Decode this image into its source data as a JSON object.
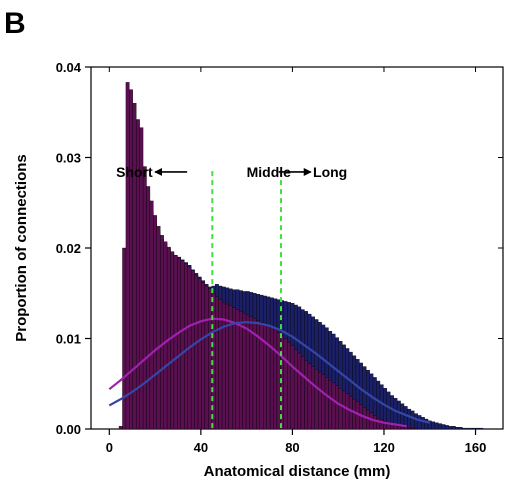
{
  "panel_label": "B",
  "chart_data": {
    "type": "bar",
    "xlabel": "Anatomical distance (mm)",
    "ylabel": "Proportion of connections",
    "xlim": [
      -8,
      172
    ],
    "ylim": [
      0,
      0.04
    ],
    "x_ticks": [
      0,
      40,
      80,
      120,
      160
    ],
    "x_tick_labels": [
      "0",
      "40",
      "80",
      "120",
      "160"
    ],
    "y_ticks": [
      0,
      0.01,
      0.02,
      0.03,
      0.04
    ],
    "y_tick_labels": [
      "0.00",
      "0.01",
      "0.02",
      "0.03",
      "0.04"
    ],
    "colors": {
      "navy_bars": "#1a1f66",
      "purple_bars": "#5a1050",
      "bar_edge": "#000000",
      "purple_curve": "#a020b0",
      "blue_curve": "#3347a8",
      "boundary_lines": "#44dd44"
    },
    "boundaries": [
      45,
      75
    ],
    "annotations": [
      {
        "text": "Short",
        "x": 3,
        "y": 0.0284
      },
      {
        "text": "Middle",
        "x": 60,
        "y": 0.0284
      },
      {
        "text": "Long",
        "x": 89,
        "y": 0.0284
      }
    ],
    "arrows": [
      {
        "from": [
          34,
          0.0284
        ],
        "to": [
          20,
          0.0284
        ]
      },
      {
        "from": [
          74,
          0.0284
        ],
        "to": [
          88,
          0.0284
        ]
      }
    ],
    "series": [
      {
        "bin_width": 1.5,
        "x": [
          9.5,
          11.0,
          12.5,
          14.0,
          15.5,
          17.0,
          18.5,
          20.0,
          21.5,
          23.0,
          24.5,
          26.0,
          27.5,
          29.0,
          30.5,
          32.0,
          33.5,
          35.0,
          36.5,
          38.0,
          39.5,
          41.0,
          42.5,
          44.0,
          45.5,
          47.0,
          48.5,
          50.0,
          51.5,
          53.0,
          54.5,
          56.0,
          57.5,
          59.0,
          60.5,
          62.0,
          63.5,
          65.0,
          66.5,
          68.0,
          69.5,
          71.0,
          72.5,
          74.0,
          75.5,
          77.0,
          78.5,
          80.0,
          81.5,
          83.0,
          84.5,
          86.0,
          87.5,
          89.0,
          90.5,
          92.0,
          93.5,
          95.0,
          96.5,
          98.0,
          99.5,
          101.0,
          102.5,
          104.0,
          105.5,
          107.0,
          108.5,
          110.0,
          111.5,
          113.0,
          114.5,
          116.0,
          117.5,
          119.0,
          120.5,
          122.0,
          123.5,
          125.0,
          126.5,
          128.0,
          129.5,
          131.0,
          132.5,
          134.0,
          135.5,
          137.0,
          138.5,
          140.0,
          141.5,
          143.0,
          144.5,
          146.0,
          147.5,
          149.0,
          150.5,
          152.0,
          153.5,
          155.0,
          156.5,
          158.0,
          159.5,
          161.0,
          162.5,
          164.0,
          165.5,
          167.0,
          168.5
        ],
        "values": [
          0.0355,
          0.0335,
          0.033,
          0.0284,
          0.0265,
          0.0253,
          0.024,
          0.0228,
          0.0218,
          0.021,
          0.0205,
          0.02,
          0.0195,
          0.0192,
          0.019,
          0.0187,
          0.0184,
          0.0181,
          0.0176,
          0.0172,
          0.0168,
          0.0164,
          0.016,
          0.0157,
          0.0158,
          0.016,
          0.0158,
          0.0157,
          0.0156,
          0.0155,
          0.0154,
          0.0154,
          0.0153,
          0.0152,
          0.0152,
          0.0151,
          0.015,
          0.0149,
          0.0148,
          0.0147,
          0.0146,
          0.0145,
          0.0144,
          0.0143,
          0.0142,
          0.0141,
          0.014,
          0.0139,
          0.0137,
          0.0135,
          0.0132,
          0.013,
          0.0127,
          0.0124,
          0.0121,
          0.0118,
          0.0115,
          0.0112,
          0.0108,
          0.0105,
          0.0101,
          0.0097,
          0.0093,
          0.0089,
          0.0085,
          0.0081,
          0.0077,
          0.0073,
          0.0069,
          0.0065,
          0.0061,
          0.0057,
          0.0053,
          0.0049,
          0.0045,
          0.0041,
          0.0037,
          0.0034,
          0.0031,
          0.0028,
          0.0025,
          0.0022,
          0.002,
          0.0017,
          0.0015,
          0.0013,
          0.0011,
          0.0009,
          0.0008,
          0.0007,
          0.0006,
          0.0005,
          0.0004,
          0.0003,
          0.0003,
          0.0002,
          0.0002,
          0.0001,
          0.0001,
          0.0001,
          0.0001,
          0.0001,
          0.0001,
          0.0,
          0.0,
          0.0,
          0.0
        ]
      },
      {
        "bin_width": 1.5,
        "x": [
          5.0,
          6.5,
          8.0,
          9.5,
          11.0,
          12.5,
          14.0,
          15.5,
          17.0,
          18.5,
          20.0,
          21.5,
          23.0,
          24.5,
          26.0,
          27.5,
          29.0,
          30.5,
          32.0,
          33.5,
          35.0,
          36.5,
          38.0,
          39.5,
          41.0,
          42.5,
          44.0,
          45.5,
          47.0,
          48.5,
          50.0,
          51.5,
          53.0,
          54.5,
          56.0,
          57.5,
          59.0,
          60.5,
          62.0,
          63.5,
          65.0,
          66.5,
          68.0,
          69.5,
          71.0,
          72.5,
          74.0,
          75.5,
          77.0,
          78.5,
          80.0,
          81.5,
          83.0,
          84.5,
          86.0,
          87.5,
          89.0,
          90.5,
          92.0,
          93.5,
          95.0,
          96.5,
          98.0,
          99.5,
          101.0,
          102.5,
          104.0,
          105.5,
          107.0,
          108.5,
          110.0,
          111.5,
          113.0,
          114.5,
          116.0,
          117.5,
          119.0,
          120.5,
          122.0,
          123.5,
          125.0,
          126.5,
          128.0,
          129.5,
          131.0,
          132.5,
          134.0,
          135.5,
          137.0
        ],
        "values": [
          0.0003,
          0.02,
          0.0383,
          0.0375,
          0.036,
          0.0342,
          0.0333,
          0.029,
          0.0268,
          0.0252,
          0.0236,
          0.0224,
          0.0214,
          0.0207,
          0.0201,
          0.0196,
          0.0192,
          0.0189,
          0.0186,
          0.0183,
          0.0179,
          0.0175,
          0.017,
          0.0166,
          0.0162,
          0.0158,
          0.0155,
          0.015,
          0.0146,
          0.0143,
          0.014,
          0.0138,
          0.0136,
          0.0134,
          0.0132,
          0.013,
          0.0128,
          0.0126,
          0.0124,
          0.0122,
          0.012,
          0.0118,
          0.0116,
          0.0114,
          0.0112,
          0.011,
          0.0107,
          0.0104,
          0.01,
          0.0096,
          0.0092,
          0.0088,
          0.0084,
          0.008,
          0.0076,
          0.0072,
          0.0069,
          0.0066,
          0.0063,
          0.006,
          0.0057,
          0.0054,
          0.0051,
          0.0048,
          0.0045,
          0.0042,
          0.0039,
          0.0036,
          0.0033,
          0.003,
          0.0027,
          0.0024,
          0.0021,
          0.0018,
          0.0015,
          0.0012,
          0.001,
          0.0008,
          0.0006,
          0.0005,
          0.0004,
          0.0003,
          0.0002,
          0.0002,
          0.0001,
          0.0001,
          0.0001,
          0.0,
          0.0
        ]
      },
      {
        "type": "line",
        "x": [
          0,
          5,
          10,
          15,
          20,
          25,
          30,
          35,
          40,
          45,
          50,
          55,
          60,
          65,
          70,
          75,
          80,
          85,
          90,
          95,
          100,
          105,
          110,
          115,
          120,
          125,
          130
        ],
        "values": [
          0.0044,
          0.0054,
          0.0065,
          0.0076,
          0.0087,
          0.0097,
          0.0106,
          0.0114,
          0.0119,
          0.0122,
          0.0121,
          0.0117,
          0.0111,
          0.0102,
          0.0092,
          0.0081,
          0.0069,
          0.0058,
          0.0047,
          0.0037,
          0.0028,
          0.0021,
          0.0015,
          0.001,
          0.0007,
          0.0005,
          0.0003
        ]
      },
      {
        "type": "line",
        "x": [
          0,
          5,
          10,
          15,
          20,
          25,
          30,
          35,
          40,
          45,
          50,
          55,
          60,
          65,
          70,
          75,
          80,
          85,
          90,
          95,
          100,
          105,
          110,
          115,
          120,
          125,
          130,
          135,
          140
        ],
        "values": [
          0.0026,
          0.0033,
          0.0041,
          0.005,
          0.006,
          0.007,
          0.008,
          0.009,
          0.0099,
          0.0107,
          0.0113,
          0.0117,
          0.0118,
          0.0117,
          0.0114,
          0.0109,
          0.0102,
          0.0093,
          0.0084,
          0.0074,
          0.0064,
          0.0054,
          0.0044,
          0.0035,
          0.0027,
          0.002,
          0.0015,
          0.001,
          0.0007
        ]
      }
    ]
  }
}
